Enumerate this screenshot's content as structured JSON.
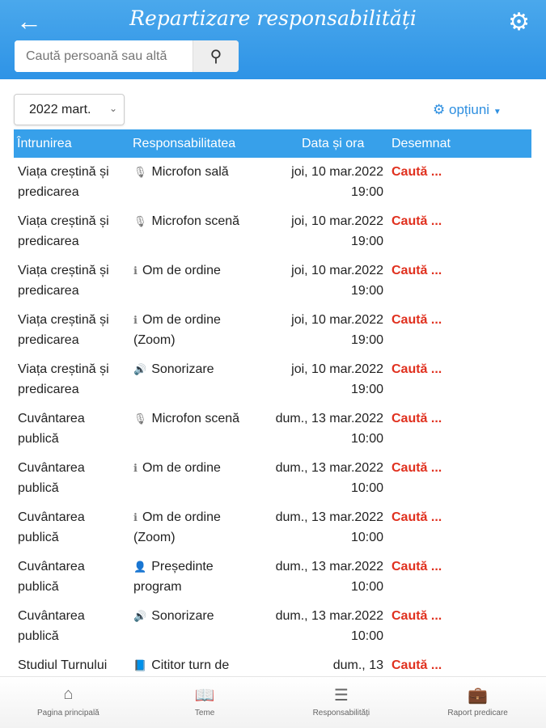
{
  "header": {
    "title": "Repartizare responsabilități",
    "search_placeholder": "Caută persoană sau altă"
  },
  "filter": {
    "month": "2022 mart.",
    "options_label": "opțiuni"
  },
  "table": {
    "columns": [
      "Întrunirea",
      "Responsabilitatea",
      "Data și ora",
      "Desemnat"
    ],
    "rows": [
      {
        "meeting": "Viața creștină și predicarea",
        "icon": "mic",
        "resp": "Microfon sală",
        "date": "joi, 10 mar.2022 19:00",
        "assigned": "Caută ..."
      },
      {
        "meeting": "Viața creștină și predicarea",
        "icon": "mic",
        "resp": "Microfon scenă",
        "date": "joi, 10 mar.2022 19:00",
        "assigned": "Caută ..."
      },
      {
        "meeting": "Viața creștină și predicarea",
        "icon": "info",
        "resp": "Om de ordine",
        "date": "joi, 10 mar.2022 19:00",
        "assigned": "Caută ..."
      },
      {
        "meeting": "Viața creștină și predicarea",
        "icon": "info",
        "resp": "Om de ordine (Zoom)",
        "date": "joi, 10 mar.2022 19:00",
        "assigned": "Caută ..."
      },
      {
        "meeting": "Viața creștină și predicarea",
        "icon": "speaker",
        "resp": "Sonorizare",
        "date": "joi, 10 mar.2022 19:00",
        "assigned": "Caută ..."
      },
      {
        "meeting": "Cuvântarea publică",
        "icon": "mic",
        "resp": "Microfon scenă",
        "date": "dum., 13 mar.2022 10:00",
        "assigned": "Caută ..."
      },
      {
        "meeting": "Cuvântarea publică",
        "icon": "info",
        "resp": "Om de ordine",
        "date": "dum., 13 mar.2022 10:00",
        "assigned": "Caută ..."
      },
      {
        "meeting": "Cuvântarea publică",
        "icon": "info",
        "resp": "Om de ordine (Zoom)",
        "date": "dum., 13 mar.2022 10:00",
        "assigned": "Caută ..."
      },
      {
        "meeting": "Cuvântarea publică",
        "icon": "person",
        "resp": "Președinte program",
        "date": "dum., 13 mar.2022 10:00",
        "assigned": "Caută ..."
      },
      {
        "meeting": "Cuvântarea publică",
        "icon": "speaker",
        "resp": "Sonorizare",
        "date": "dum., 13 mar.2022 10:00",
        "assigned": "Caută ..."
      },
      {
        "meeting": "Studiul Turnului",
        "icon": "book",
        "resp": "Cititor turn de",
        "date": "dum., 13",
        "assigned": "Caută ..."
      }
    ]
  },
  "nav": [
    {
      "label": "Pagina principală",
      "icon": "home"
    },
    {
      "label": "Teme",
      "icon": "reader"
    },
    {
      "label": "Responsabilități",
      "icon": "checklist"
    },
    {
      "label": "Raport predicare",
      "icon": "briefcase"
    }
  ],
  "colors": {
    "header": "#2e93e6",
    "accent": "#2e8fe0",
    "assigned": "#e0301e"
  }
}
